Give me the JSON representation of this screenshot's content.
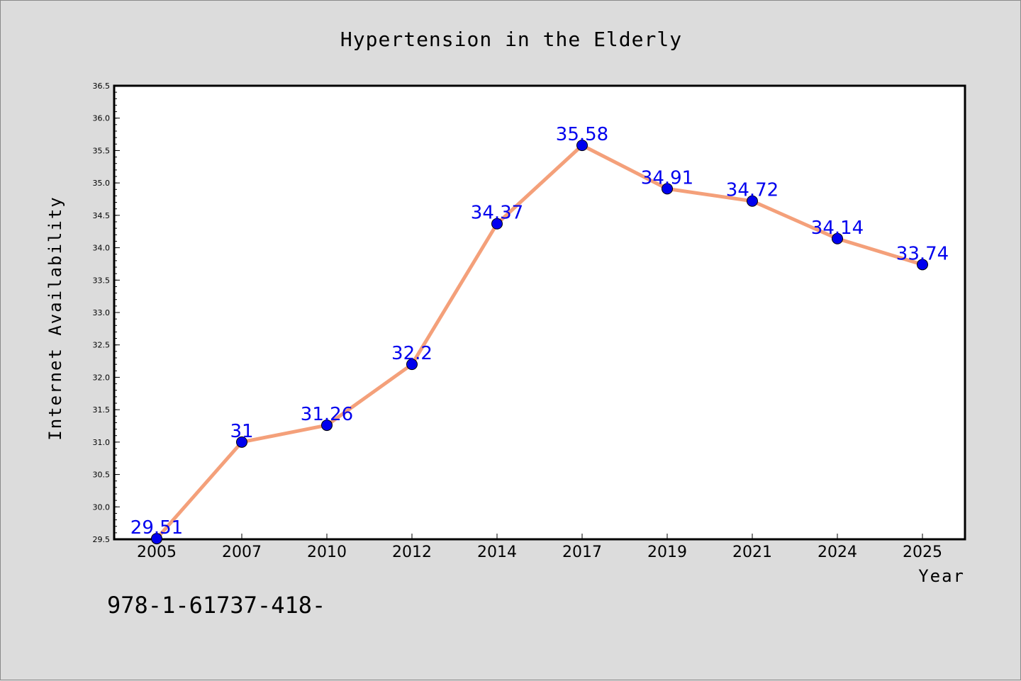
{
  "chart_data": {
    "type": "line",
    "title": "Hypertension in the Elderly",
    "xlabel": "Year",
    "ylabel": "Internet Availability",
    "categories": [
      "2005",
      "2007",
      "2010",
      "2012",
      "2014",
      "2017",
      "2019",
      "2021",
      "2024",
      "2025"
    ],
    "series": [
      {
        "values": [
          29.51,
          31,
          31.26,
          32.2,
          34.37,
          35.58,
          34.91,
          34.72,
          34.14,
          33.74
        ],
        "line_color": "#f4a07a",
        "marker_color": "#0000ee"
      }
    ],
    "ylim": [
      29.5,
      36.5
    ],
    "yticks": [
      "29.5",
      "30.0",
      "30.5",
      "31.0",
      "31.5",
      "32.0",
      "32.5",
      "33.0",
      "33.5",
      "34.0",
      "34.5",
      "35.0",
      "35.5",
      "36.0",
      "36.5"
    ],
    "data_labels": [
      "29.51",
      "31",
      "31.26",
      "32.2",
      "34.37",
      "35.58",
      "34.91",
      "34.72",
      "34.14",
      "33.74"
    ],
    "grid": false,
    "legend": "none"
  },
  "footer": {
    "text": "978-1-61737-418-"
  }
}
